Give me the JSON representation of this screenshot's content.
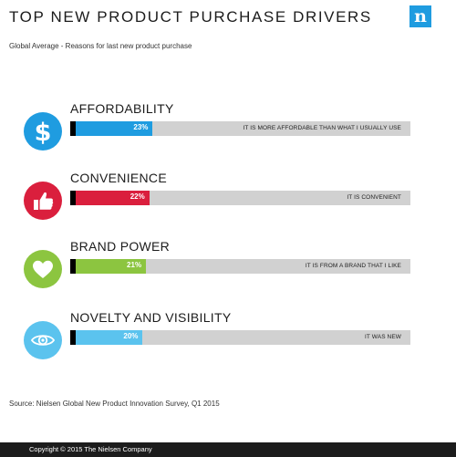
{
  "header": {
    "title": "TOP NEW PRODUCT PURCHASE DRIVERS",
    "subtitle": "Global Average - Reasons for last new product purchase",
    "logo_letter": "n",
    "logo_color": "#1f9ce0"
  },
  "chart_data": {
    "type": "bar",
    "orientation": "horizontal",
    "title": "TOP NEW PRODUCT PURCHASE DRIVERS",
    "subtitle": "Global Average - Reasons for last new product purchase",
    "categories": [
      "AFFORDABILITY",
      "CONVENIENCE",
      "BRAND POWER",
      "NOVELTY AND VISIBILITY"
    ],
    "values": [
      23,
      22,
      21,
      20
    ],
    "value_labels": [
      "23%",
      "22%",
      "21%",
      "20%"
    ],
    "reasons": [
      "IT IS MORE AFFORDABLE THAN WHAT I USUALLY USE",
      "IT IS CONVENIENT",
      "IT IS FROM A BRAND THAT I LIKE",
      "IT WAS NEW"
    ],
    "colors": [
      "#1f9ce0",
      "#da1f3d",
      "#8cc540",
      "#5bc3ee"
    ],
    "icons": [
      "dollar-icon",
      "thumbs-up-icon",
      "heart-icon",
      "eye-icon"
    ],
    "xlim": [
      0,
      100
    ],
    "track_color": "#d1d1d1",
    "grid": false,
    "legend": "none"
  },
  "footer": {
    "source": "Source: Nielsen Global New Product Innovation Survey, Q1 2015",
    "copyright": "Copyright © 2015 The Nielsen Company"
  }
}
